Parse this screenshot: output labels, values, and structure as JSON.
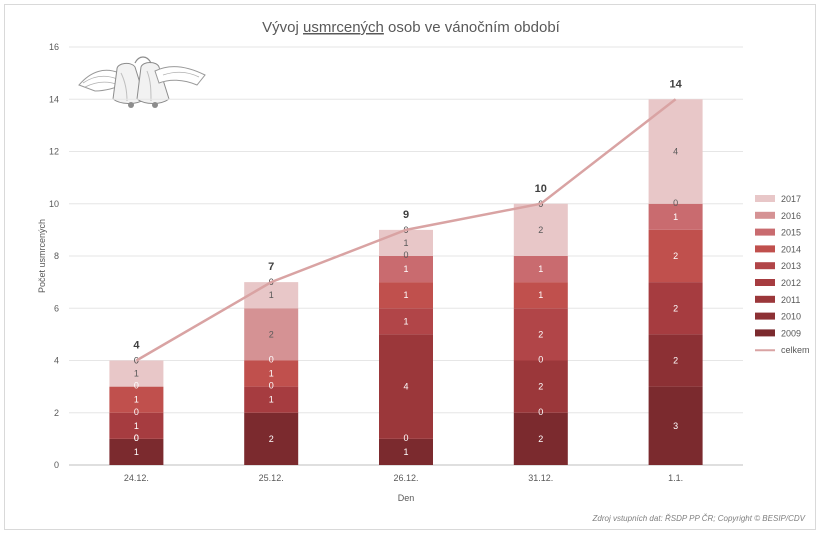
{
  "chart_data": {
    "type": "bar",
    "stacked": true,
    "title": "Vývoj usmrcených osob ve vánočním období",
    "title_parts": [
      "Vývoj ",
      "usmrcených",
      " osob ve vánočním období"
    ],
    "xlabel": "Den",
    "ylabel": "Počet usmrcených",
    "ylim": [
      0,
      16
    ],
    "yticks": [
      "0",
      "2",
      "4",
      "6",
      "8",
      "10",
      "12",
      "14",
      "16"
    ],
    "categories": [
      "24.12.",
      "25.12.",
      "26.12.",
      "31.12.",
      "1.1."
    ],
    "series": [
      {
        "name": "2009",
        "color": "#7b2a2e",
        "values": [
          1,
          2,
          1,
          2,
          3
        ],
        "labels": [
          "1",
          "2",
          "1",
          "2",
          "3"
        ]
      },
      {
        "name": "2010",
        "color": "#8c3034",
        "values": [
          0,
          0,
          0,
          0,
          2
        ],
        "labels": [
          "0",
          "",
          "0",
          "0",
          "2"
        ]
      },
      {
        "name": "2011",
        "color": "#9b373a",
        "values": [
          0,
          0,
          4,
          2,
          0
        ],
        "labels": [
          "0",
          "",
          "4",
          "2",
          ""
        ]
      },
      {
        "name": "2012",
        "color": "#a63c40",
        "values": [
          1,
          1,
          0,
          0,
          2
        ],
        "labels": [
          "1",
          "1",
          "",
          "0",
          "2"
        ]
      },
      {
        "name": "2013",
        "color": "#b14548",
        "values": [
          0,
          0,
          1,
          2,
          0
        ],
        "labels": [
          "0",
          "0",
          "1",
          "2",
          ""
        ]
      },
      {
        "name": "2014",
        "color": "#c0504d",
        "values": [
          1,
          1,
          1,
          1,
          2
        ],
        "labels": [
          "1",
          "1",
          "1",
          "1",
          "2"
        ]
      },
      {
        "name": "2015",
        "color": "#c96b6f",
        "values": [
          0,
          0,
          1,
          1,
          1
        ],
        "labels": [
          "0",
          "0",
          "1",
          "1",
          "1"
        ]
      },
      {
        "name": "2016",
        "color": "#d59294",
        "values": [
          0,
          2,
          0,
          0,
          0
        ],
        "labels": [
          "",
          "2",
          "0",
          "",
          "0"
        ]
      },
      {
        "name": "2017",
        "color": "#e8c7c8",
        "values": [
          1,
          1,
          1,
          2,
          4
        ],
        "labels": [
          "1",
          "1",
          "1",
          "2",
          "4"
        ]
      }
    ],
    "extra_top_labels": [
      [
        "0",
        "0",
        "0",
        "0",
        ""
      ],
      [
        "",
        "",
        "",
        "",
        ""
      ]
    ],
    "total": {
      "name": "celkem",
      "type": "line",
      "color": "#d9a3a3",
      "values": [
        4,
        7,
        9,
        10,
        14
      ]
    },
    "total_labels": [
      "4",
      "7",
      "9",
      "10",
      "14"
    ],
    "legend_position": "right",
    "grid": true,
    "source": "Zdroj vstupních dat: ŘSDP PP ČR; Copyright © BESIP/CDV",
    "decoration_icon": "christmas-bells-icon"
  }
}
